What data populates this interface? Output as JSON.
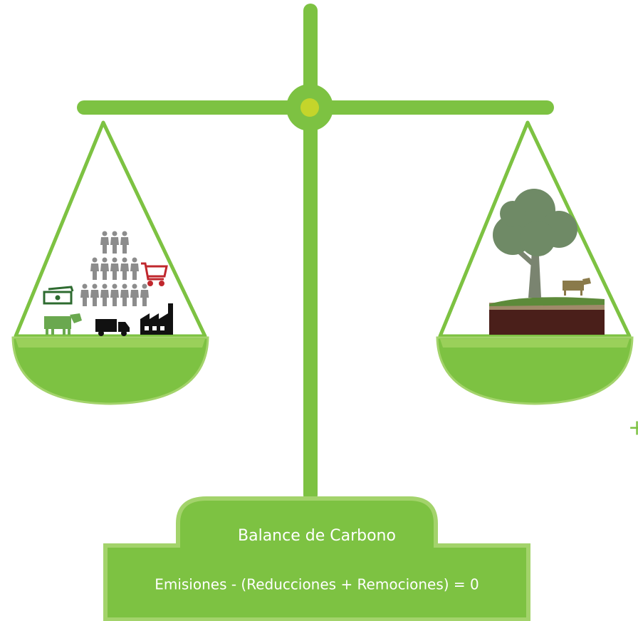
{
  "label": {
    "title": "Balance de Carbono",
    "equation": "Emisiones - (Reducciones + Remociones) = 0"
  },
  "side_mark": "+"
}
